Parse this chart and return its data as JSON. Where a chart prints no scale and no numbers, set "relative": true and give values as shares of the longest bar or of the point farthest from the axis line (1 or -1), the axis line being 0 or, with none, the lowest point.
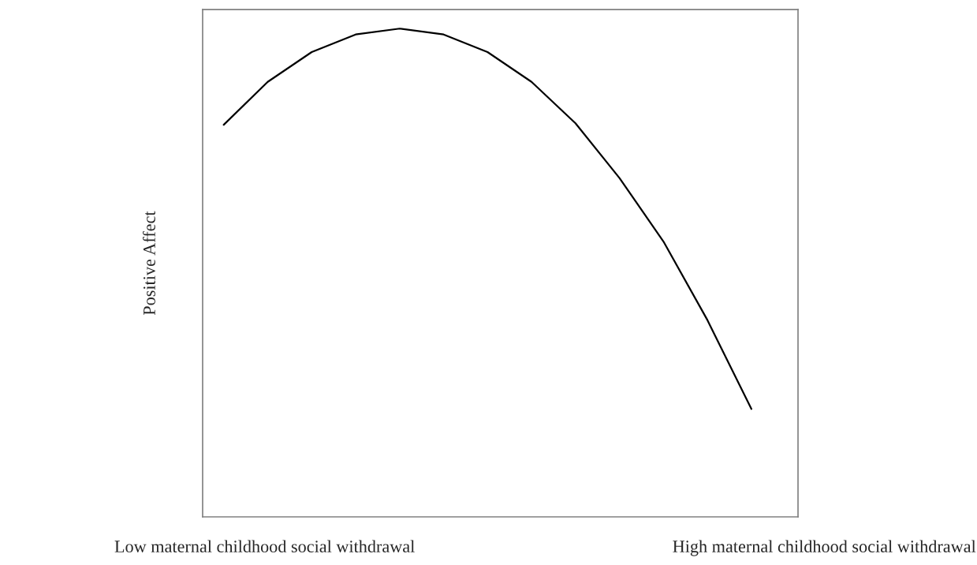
{
  "chart_data": {
    "type": "line",
    "relative": true,
    "ylabel": "Positive Affect",
    "categories": [
      null,
      null,
      null,
      null,
      null,
      null,
      null,
      null,
      null,
      null,
      null,
      null,
      null
    ],
    "series": [
      {
        "color": "#000000",
        "values": [
          0.803,
          0.891,
          0.952,
          0.988,
          1,
          0.988,
          0.952,
          0.891,
          0.806,
          0.694,
          0.564,
          0.403,
          0.221
        ]
      }
    ],
    "annotations": [
      "Low maternal childhood social withdrawal",
      "High maternal childhood social withdrawal"
    ],
    "grid": false,
    "legend": false,
    "marker": "none",
    "line_style": "solid"
  }
}
